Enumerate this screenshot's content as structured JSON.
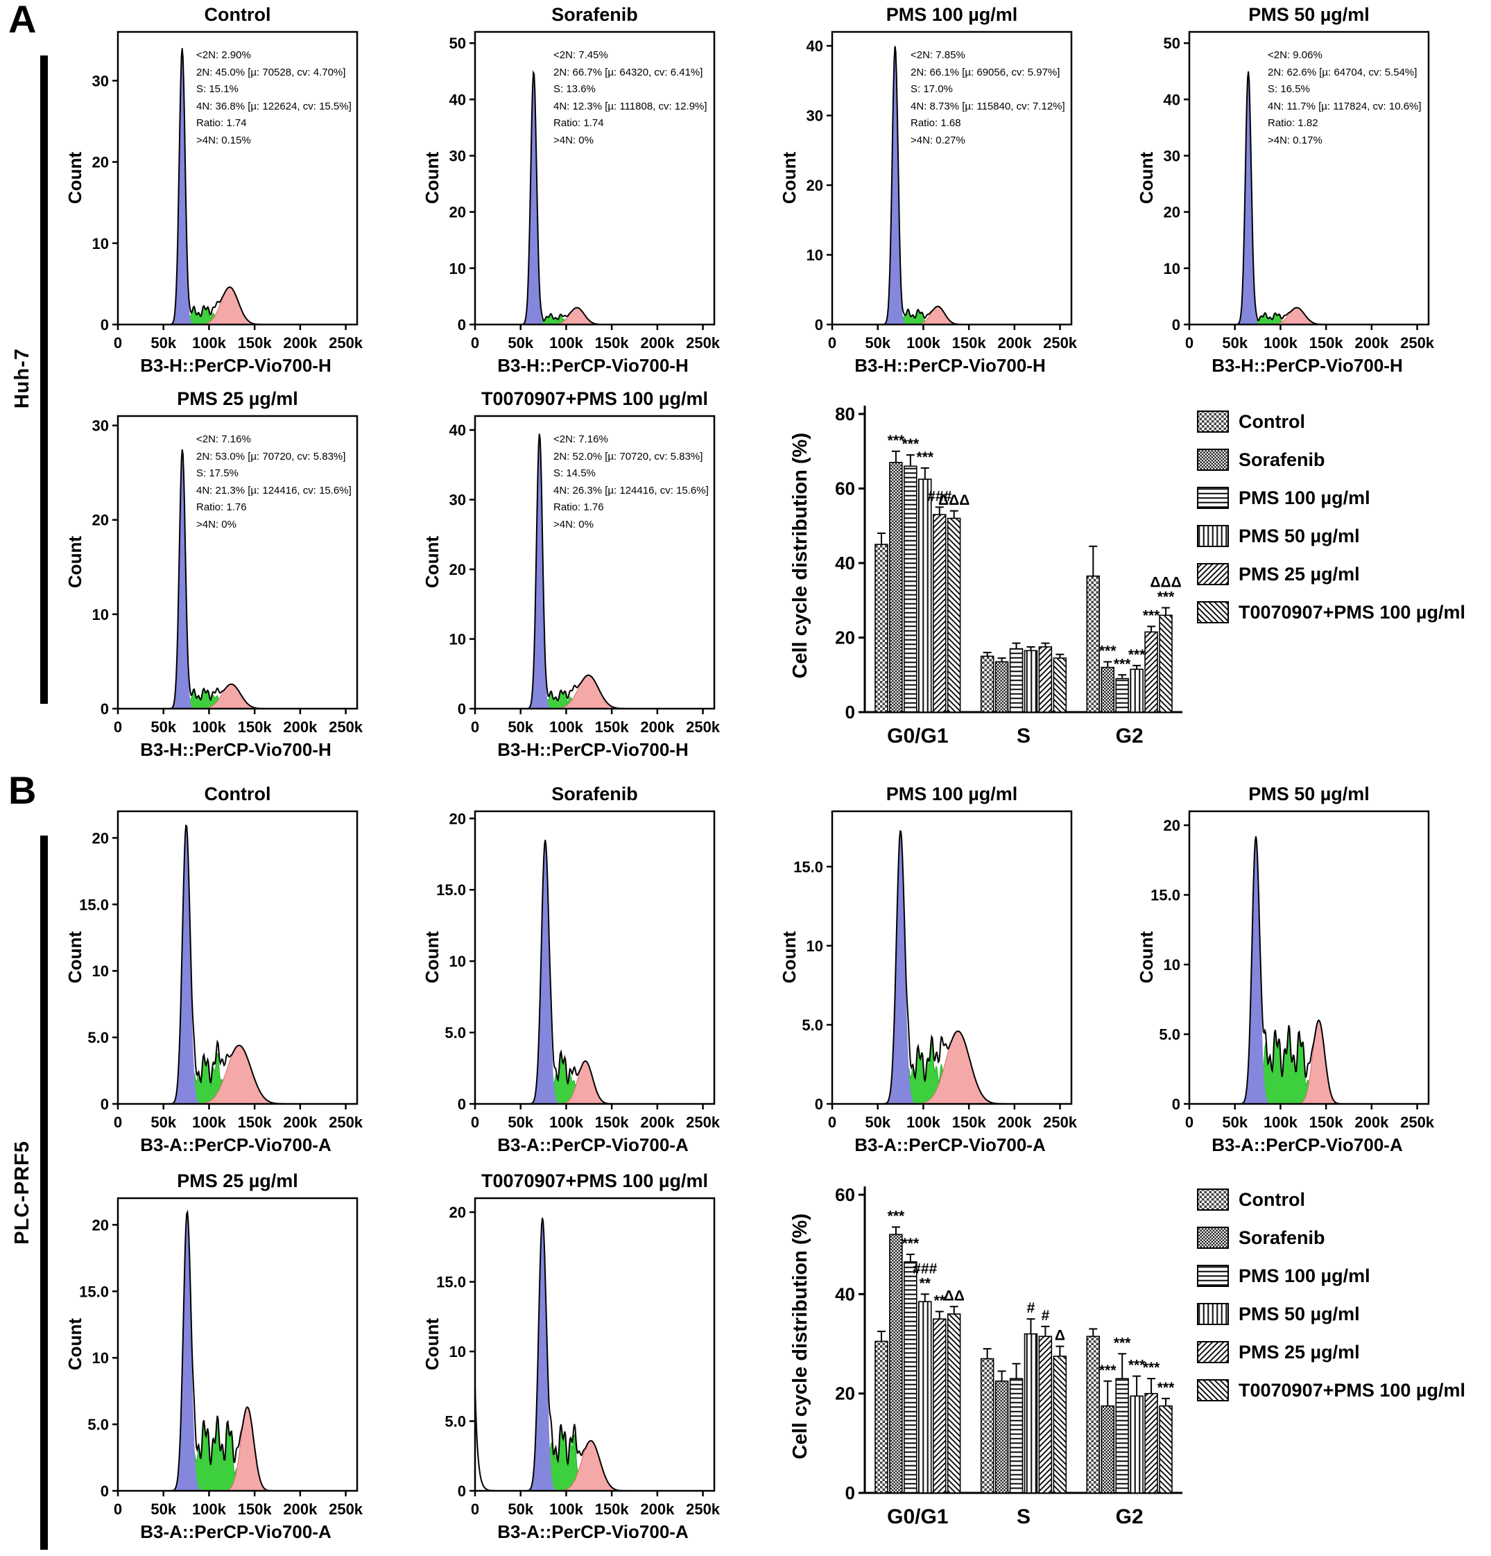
{
  "figure": {
    "panels": [
      {
        "label": "A",
        "row_label": "Huh-7"
      },
      {
        "label": "B",
        "row_label": "PLC-PRF5"
      }
    ]
  },
  "chart_data": [
    {
      "type": "histogram",
      "panel": "A",
      "title": "Control",
      "xlabel": "B3-H::PerCP-Vio700-H",
      "ylabel": "Count",
      "xlim": [
        0,
        262500
      ],
      "xticks": [
        0,
        50000,
        100000,
        150000,
        200000,
        250000
      ],
      "xtick_labels": [
        "0",
        "50k",
        "100k",
        "150k",
        "200k",
        "250k"
      ],
      "ylim": [
        0,
        36
      ],
      "yticks": [
        0,
        10,
        20,
        30
      ],
      "ytick_labels": [
        "0",
        "10",
        "20",
        "30"
      ],
      "g1_peak": {
        "x": 70528,
        "height": 34,
        "sigma": 3200
      },
      "s_region": {
        "height": 1.6
      },
      "g2_peak": {
        "x": 122624,
        "height": 4.6,
        "sigma": 9500
      },
      "stats_text": "<2N: 2.90%\n2N: 45.0%   [µ: 70528, cv: 4.70%]\nS: 15.1%\n4N: 36.8%   [µ: 122624, cv: 15.5%]\nRatio: 1.74\n>4N: 0.15%"
    },
    {
      "type": "histogram",
      "panel": "A",
      "title": "Sorafenib",
      "xlabel": "B3-H::PerCP-Vio700-H",
      "ylabel": "Count",
      "xlim": [
        0,
        262500
      ],
      "xticks": [
        0,
        50000,
        100000,
        150000,
        200000,
        250000
      ],
      "xtick_labels": [
        "0",
        "50k",
        "100k",
        "150k",
        "200k",
        "250k"
      ],
      "ylim": [
        0,
        52
      ],
      "yticks": [
        0,
        10,
        20,
        30,
        40,
        50
      ],
      "ytick_labels": [
        "0",
        "10",
        "20",
        "30",
        "40",
        "50"
      ],
      "g1_peak": {
        "x": 64320,
        "height": 45,
        "sigma": 3200
      },
      "s_region": {
        "height": 1.3
      },
      "g2_peak": {
        "x": 111808,
        "height": 3.0,
        "sigma": 8000
      },
      "stats_text": "<2N: 7.45%\n2N: 66.7%   [µ: 64320, cv: 6.41%]\nS: 13.6%\n4N: 12.3%   [µ: 111808, cv: 12.9%]\nRatio: 1.74\n>4N: 0%"
    },
    {
      "type": "histogram",
      "panel": "A",
      "title": "PMS 100 µg/ml",
      "xlabel": "B3-H::PerCP-Vio700-H",
      "ylabel": "Count",
      "xlim": [
        0,
        262500
      ],
      "xticks": [
        0,
        50000,
        100000,
        150000,
        200000,
        250000
      ],
      "xtick_labels": [
        "0",
        "50k",
        "100k",
        "150k",
        "200k",
        "250k"
      ],
      "ylim": [
        0,
        42
      ],
      "yticks": [
        0,
        10,
        20,
        30,
        40
      ],
      "ytick_labels": [
        "0",
        "10",
        "20",
        "30",
        "40"
      ],
      "g1_peak": {
        "x": 69056,
        "height": 40,
        "sigma": 3200
      },
      "s_region": {
        "height": 1.5
      },
      "g2_peak": {
        "x": 115840,
        "height": 2.6,
        "sigma": 7500
      },
      "stats_text": "<2N: 7.85%\n2N: 66.1%   [µ: 69056, cv: 5.97%]\nS: 17.0%\n4N: 8.73%   [µ: 115840, cv: 7.12%]\nRatio: 1.68\n>4N: 0.27%"
    },
    {
      "type": "histogram",
      "panel": "A",
      "title": "PMS 50 µg/ml",
      "xlabel": "B3-H::PerCP-Vio700-H",
      "ylabel": "Count",
      "xlim": [
        0,
        262500
      ],
      "xticks": [
        0,
        50000,
        100000,
        150000,
        200000,
        250000
      ],
      "xtick_labels": [
        "0",
        "50k",
        "100k",
        "150k",
        "200k",
        "250k"
      ],
      "ylim": [
        0,
        52
      ],
      "yticks": [
        0,
        10,
        20,
        30,
        40,
        50
      ],
      "ytick_labels": [
        "0",
        "10",
        "20",
        "30",
        "40",
        "50"
      ],
      "g1_peak": {
        "x": 64704,
        "height": 45,
        "sigma": 3200
      },
      "s_region": {
        "height": 1.4
      },
      "g2_peak": {
        "x": 117824,
        "height": 3.0,
        "sigma": 8500
      },
      "stats_text": "<2N: 9.06%\n2N: 62.6%   [µ: 64704, cv: 5.54%]\nS: 16.5%\n4N: 11.7%   [µ: 117824, cv: 10.6%]\nRatio: 1.82\n>4N: 0.17%"
    },
    {
      "type": "histogram",
      "panel": "A",
      "title": "PMS 25 µg/ml",
      "xlabel": "B3-H::PerCP-Vio700-H",
      "ylabel": "Count",
      "xlim": [
        0,
        262500
      ],
      "xticks": [
        0,
        50000,
        100000,
        150000,
        200000,
        250000
      ],
      "xtick_labels": [
        "0",
        "50k",
        "100k",
        "150k",
        "200k",
        "250k"
      ],
      "ylim": [
        0,
        31
      ],
      "yticks": [
        0,
        10,
        20,
        30
      ],
      "ytick_labels": [
        "0",
        "10",
        "20",
        "30"
      ],
      "g1_peak": {
        "x": 70720,
        "height": 27.5,
        "sigma": 3300
      },
      "s_region": {
        "height": 1.5
      },
      "g2_peak": {
        "x": 124416,
        "height": 2.6,
        "sigma": 10000
      },
      "stats_text": "<2N: 7.16%\n2N: 53.0%   [µ: 70720, cv: 5.83%]\nS: 17.5%\n4N: 21.3%   [µ: 124416, cv: 15.6%]\nRatio: 1.76\n>4N: 0%"
    },
    {
      "type": "histogram",
      "panel": "A",
      "title": "T0070907+PMS 100 µg/ml",
      "xlabel": "B3-H::PerCP-Vio700-H",
      "ylabel": "Count",
      "xlim": [
        0,
        262500
      ],
      "xticks": [
        0,
        50000,
        100000,
        150000,
        200000,
        250000
      ],
      "xtick_labels": [
        "0",
        "50k",
        "100k",
        "150k",
        "200k",
        "250k"
      ],
      "ylim": [
        0,
        42
      ],
      "yticks": [
        0,
        10,
        20,
        30,
        40
      ],
      "ytick_labels": [
        "0",
        "10",
        "20",
        "30",
        "40"
      ],
      "g1_peak": {
        "x": 70720,
        "height": 39.5,
        "sigma": 3300
      },
      "s_region": {
        "height": 1.8
      },
      "g2_peak": {
        "x": 124416,
        "height": 4.8,
        "sigma": 11000
      },
      "stats_text": "<2N: 7.16%\n2N: 52.0%   [µ: 70720, cv: 5.83%]\nS: 14.5%\n4N: 26.3%   [µ: 124416, cv: 15.6%]\nRatio: 1.76\n>4N: 0%"
    },
    {
      "type": "bar",
      "panel": "A",
      "ylabel": "Cell cycle distribution (%)",
      "ylim": [
        0,
        80
      ],
      "yticks": [
        0,
        20,
        40,
        60,
        80
      ],
      "categories": [
        "G0/G1",
        "S",
        "G2"
      ],
      "legend_position": "right",
      "series": [
        {
          "name": "Control",
          "pattern": "check",
          "values": [
            45,
            15,
            36.5
          ],
          "errors": [
            3,
            1,
            8
          ],
          "sig": [
            "",
            "",
            ""
          ]
        },
        {
          "name": "Sorafenib",
          "pattern": "dense",
          "values": [
            67,
            13.5,
            12
          ],
          "errors": [
            3,
            1,
            1.5
          ],
          "sig": [
            "***",
            "",
            "***"
          ]
        },
        {
          "name": "PMS 100 µg/ml",
          "pattern": "horiz",
          "values": [
            66,
            17,
            9
          ],
          "errors": [
            3,
            1.5,
            1
          ],
          "sig": [
            "***",
            "",
            "***"
          ]
        },
        {
          "name": "PMS 50 µg/ml",
          "pattern": "vert",
          "values": [
            62.5,
            16.5,
            11.5
          ],
          "errors": [
            3,
            1,
            1
          ],
          "sig": [
            "***",
            "",
            "***"
          ]
        },
        {
          "name": "PMS 25 µg/ml",
          "pattern": "diag",
          "values": [
            53,
            17.5,
            21.5
          ],
          "errors": [
            2,
            1,
            1.5
          ],
          "sig": [
            "###",
            "",
            "***"
          ]
        },
        {
          "name": "T0070907+PMS 100 µg/ml",
          "pattern": "rdiag",
          "values": [
            52,
            14.5,
            26
          ],
          "errors": [
            2,
            1,
            2
          ],
          "sig": [
            "ΔΔΔ",
            "",
            "ΔΔΔ\n***"
          ]
        }
      ]
    },
    {
      "type": "histogram",
      "panel": "B",
      "title": "Control",
      "xlabel": "B3-A::PerCP-Vio700-A",
      "ylabel": "Count",
      "xlim": [
        0,
        262500
      ],
      "xticks": [
        0,
        50000,
        100000,
        150000,
        200000,
        250000
      ],
      "xtick_labels": [
        "0",
        "50k",
        "100k",
        "150k",
        "200k",
        "250k"
      ],
      "ylim": [
        0,
        22
      ],
      "yticks": [
        0,
        5,
        10,
        15,
        20
      ],
      "ytick_labels": [
        "0",
        "5.0",
        "10",
        "15.0",
        "20"
      ],
      "g1_peak": {
        "x": 75000,
        "height": 21,
        "sigma": 4200
      },
      "s_region": {
        "height": 2.6
      },
      "g2_peak": {
        "x": 133000,
        "height": 4.4,
        "sigma": 13000
      }
    },
    {
      "type": "histogram",
      "panel": "B",
      "title": "Sorafenib",
      "xlabel": "B3-A::PerCP-Vio700-A",
      "ylabel": "Count",
      "xlim": [
        0,
        262500
      ],
      "xticks": [
        0,
        50000,
        100000,
        150000,
        200000,
        250000
      ],
      "xtick_labels": [
        "0",
        "50k",
        "100k",
        "150k",
        "200k",
        "250k"
      ],
      "ylim": [
        0,
        20.5
      ],
      "yticks": [
        0,
        5,
        10,
        15,
        20
      ],
      "ytick_labels": [
        "0",
        "5.0",
        "10",
        "15.0",
        "20"
      ],
      "g1_peak": {
        "x": 77000,
        "height": 18.5,
        "sigma": 4200
      },
      "s_region": {
        "height": 2.6
      },
      "g2_peak": {
        "x": 121000,
        "height": 3.0,
        "sigma": 8000
      }
    },
    {
      "type": "histogram",
      "panel": "B",
      "title": "PMS 100 µg/ml",
      "xlabel": "B3-A::PerCP-Vio700-A",
      "ylabel": "Count",
      "xlim": [
        0,
        262500
      ],
      "xticks": [
        0,
        50000,
        100000,
        150000,
        200000,
        250000
      ],
      "xtick_labels": [
        "0",
        "50k",
        "100k",
        "150k",
        "200k",
        "250k"
      ],
      "ylim": [
        0,
        18.5
      ],
      "yticks": [
        0,
        5,
        10,
        15
      ],
      "ytick_labels": [
        "0",
        "5.0",
        "10",
        "15.0"
      ],
      "g1_peak": {
        "x": 75000,
        "height": 17.3,
        "sigma": 4500
      },
      "s_region": {
        "height": 2.6
      },
      "g2_peak": {
        "x": 138000,
        "height": 4.6,
        "sigma": 13000
      }
    },
    {
      "type": "histogram",
      "panel": "B",
      "title": "PMS 50 µg/ml",
      "xlabel": "B3-A::PerCP-Vio700-A",
      "ylabel": "Count",
      "xlim": [
        0,
        262500
      ],
      "xticks": [
        0,
        50000,
        100000,
        150000,
        200000,
        250000
      ],
      "xtick_labels": [
        "0",
        "50k",
        "100k",
        "150k",
        "200k",
        "250k"
      ],
      "ylim": [
        0,
        21
      ],
      "yticks": [
        0,
        5,
        10,
        15,
        20
      ],
      "ytick_labels": [
        "0",
        "5.0",
        "10",
        "15.0",
        "20"
      ],
      "g1_peak": {
        "x": 73000,
        "height": 19.2,
        "sigma": 4200
      },
      "s_region": {
        "height": 3.8
      },
      "g2_peak": {
        "x": 142000,
        "height": 6.0,
        "sigma": 6500
      }
    },
    {
      "type": "histogram",
      "panel": "B",
      "title": "PMS 25 µg/ml",
      "xlabel": "B3-A::PerCP-Vio700-A",
      "ylabel": "Count",
      "xlim": [
        0,
        262500
      ],
      "xticks": [
        0,
        50000,
        100000,
        150000,
        200000,
        250000
      ],
      "xtick_labels": [
        "0",
        "50k",
        "100k",
        "150k",
        "200k",
        "250k"
      ],
      "ylim": [
        0,
        22
      ],
      "yticks": [
        0,
        5,
        10,
        15,
        20
      ],
      "ytick_labels": [
        "0",
        "5.0",
        "10",
        "15.0",
        "20"
      ],
      "g1_peak": {
        "x": 76000,
        "height": 21,
        "sigma": 4200
      },
      "s_region": {
        "height": 3.8
      },
      "g2_peak": {
        "x": 142000,
        "height": 6.3,
        "sigma": 7000
      }
    },
    {
      "type": "histogram",
      "panel": "B",
      "title": "T0070907+PMS 100 µg/ml",
      "xlabel": "B3-A::PerCP-Vio700-A",
      "ylabel": "Count",
      "xlim": [
        0,
        262500
      ],
      "xticks": [
        0,
        50000,
        100000,
        150000,
        200000,
        250000
      ],
      "xtick_labels": [
        "0",
        "50k",
        "100k",
        "150k",
        "200k",
        "250k"
      ],
      "ylim": [
        0,
        21
      ],
      "yticks": [
        0,
        5,
        10,
        15,
        20
      ],
      "ytick_labels": [
        "0",
        "5.0",
        "10",
        "15.0",
        "20"
      ],
      "g1_peak": {
        "x": 74000,
        "height": 19.6,
        "sigma": 4200
      },
      "s_region": {
        "height": 3.4
      },
      "g2_peak": {
        "x": 127000,
        "height": 3.6,
        "sigma": 10000
      },
      "spike0": 7.5
    },
    {
      "type": "bar",
      "panel": "B",
      "ylabel": "Cell cycle distribution (%)",
      "ylim": [
        0,
        60
      ],
      "yticks": [
        0,
        20,
        40,
        60
      ],
      "categories": [
        "G0/G1",
        "S",
        "G2"
      ],
      "legend_position": "right",
      "series": [
        {
          "name": "Control",
          "pattern": "check",
          "values": [
            30.5,
            27,
            31.5
          ],
          "errors": [
            2,
            2,
            1.5
          ],
          "sig": [
            "",
            "",
            ""
          ]
        },
        {
          "name": "Sorafenib",
          "pattern": "dense",
          "values": [
            52,
            22.5,
            17.5
          ],
          "errors": [
            1.5,
            2,
            5
          ],
          "sig": [
            "***",
            "",
            "***"
          ]
        },
        {
          "name": "PMS 100 µg/ml",
          "pattern": "horiz",
          "values": [
            46.5,
            23,
            23
          ],
          "errors": [
            1.5,
            3,
            5
          ],
          "sig": [
            "***",
            "",
            "***"
          ]
        },
        {
          "name": "PMS 50 µg/ml",
          "pattern": "vert",
          "values": [
            38.5,
            32,
            19.5
          ],
          "errors": [
            1.5,
            3,
            4
          ],
          "sig": [
            "###\n**",
            "#",
            "***"
          ]
        },
        {
          "name": "PMS 25 µg/ml",
          "pattern": "diag",
          "values": [
            35,
            31.5,
            20
          ],
          "errors": [
            1.5,
            2,
            3
          ],
          "sig": [
            "**",
            "#",
            "***"
          ]
        },
        {
          "name": "T0070907+PMS 100 µg/ml",
          "pattern": "rdiag",
          "values": [
            36,
            27.5,
            17.5
          ],
          "errors": [
            1.5,
            2,
            1.5
          ],
          "sig": [
            "ΔΔ",
            "Δ",
            "***"
          ]
        }
      ]
    }
  ]
}
